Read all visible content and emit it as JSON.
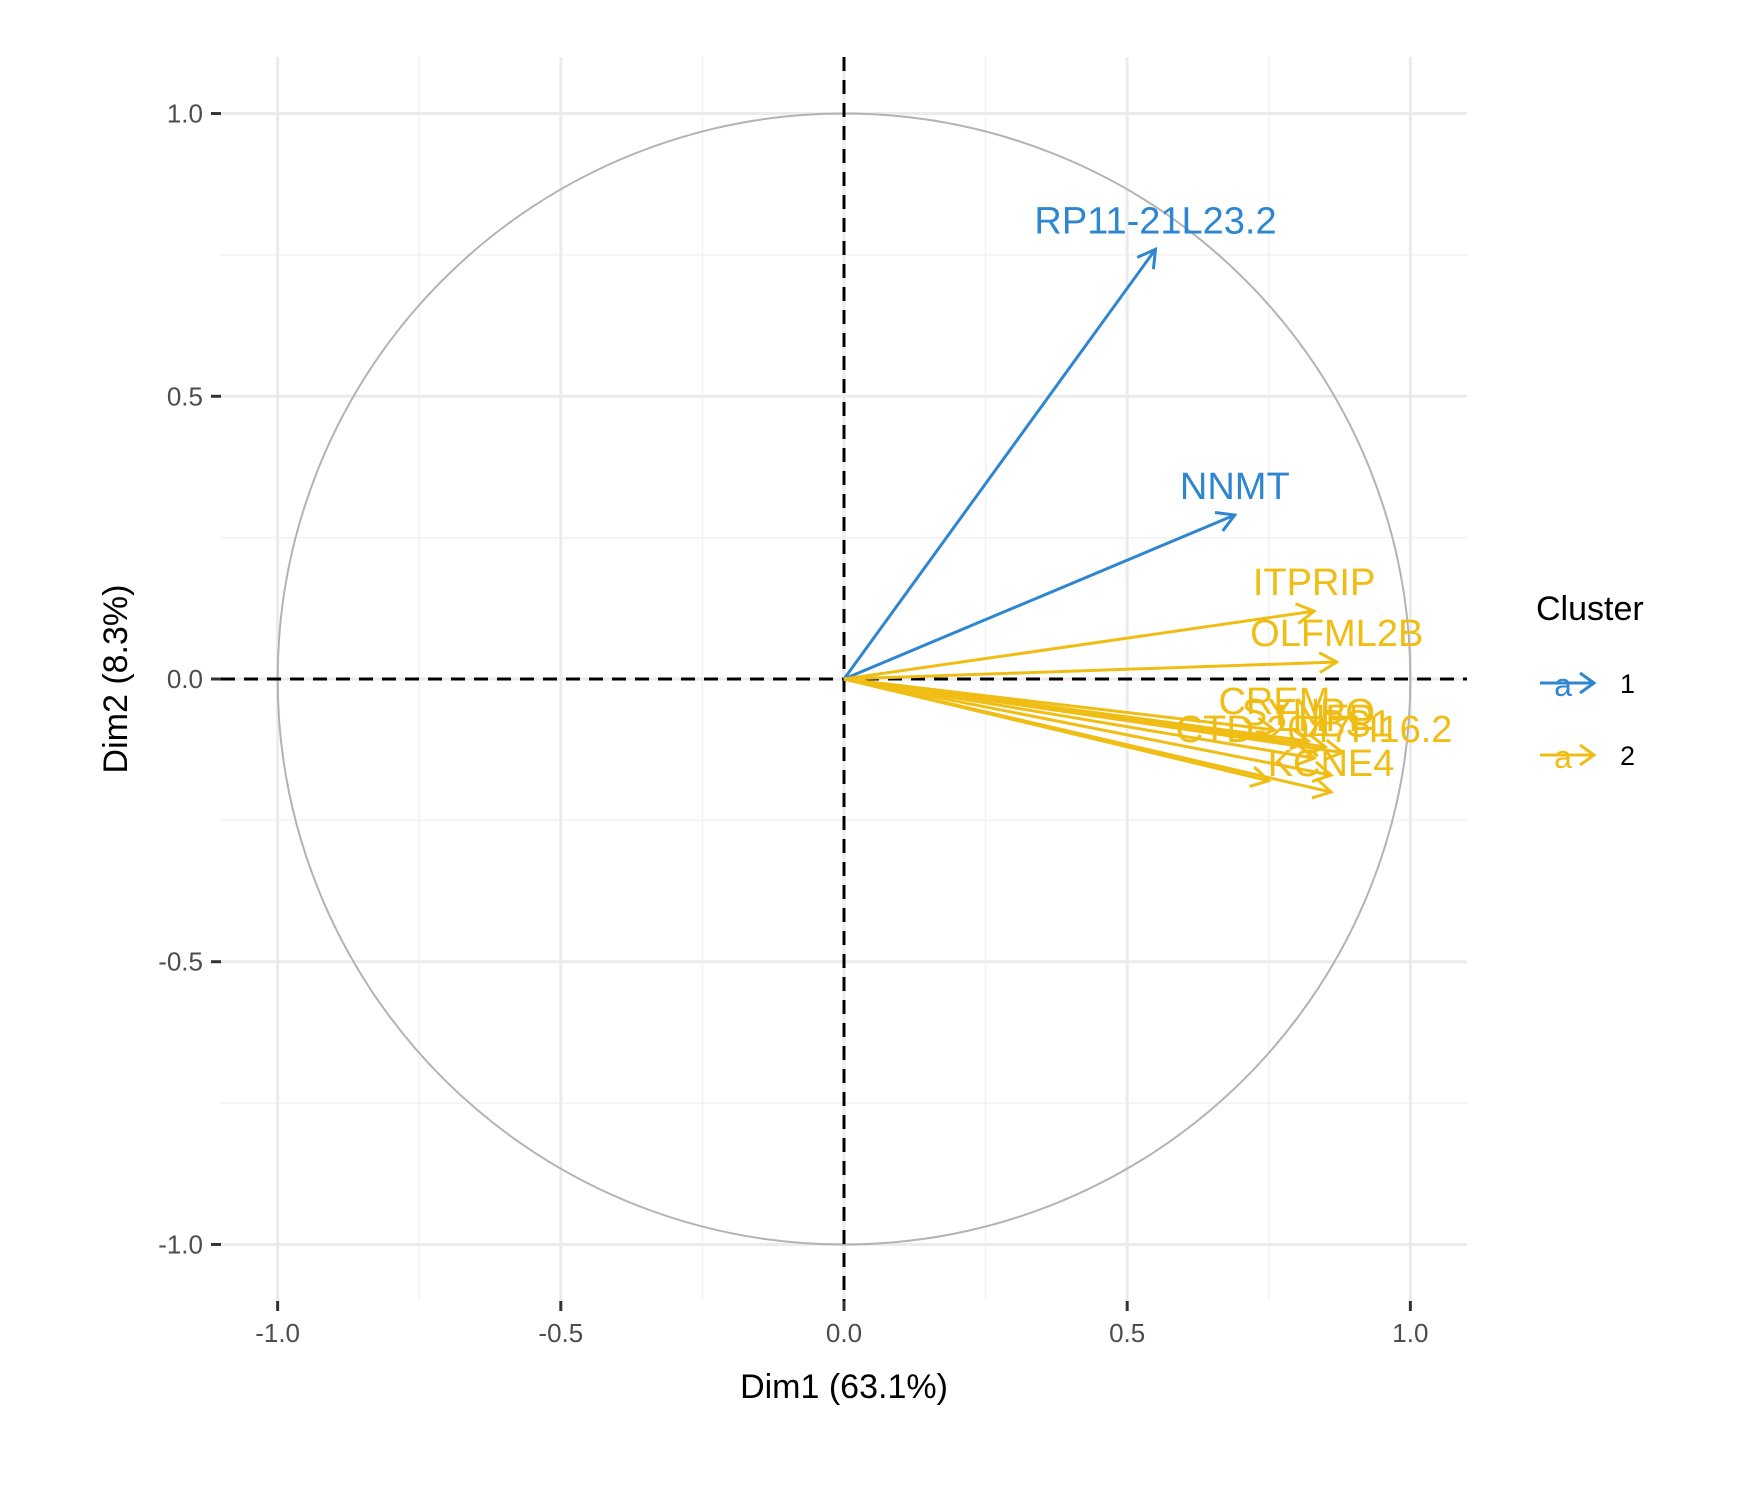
{
  "chart_data": {
    "type": "scatter",
    "subtype": "pca-variable-correlation-circle",
    "title": "",
    "xlabel": "Dim1 (63.1%)",
    "ylabel": "Dim2 (8.3%)",
    "xlim": [
      -1.1,
      1.1
    ],
    "ylim": [
      -1.1,
      1.1
    ],
    "x_ticks": [
      -1.0,
      -0.5,
      0.0,
      0.5,
      1.0
    ],
    "x_tick_labels": [
      "-1.0",
      "-0.5",
      "0.0",
      "0.5",
      "1.0"
    ],
    "y_ticks": [
      -1.0,
      -0.5,
      0.0,
      0.5,
      1.0
    ],
    "y_tick_labels": [
      "-1.0",
      "-0.5",
      "0.0",
      "0.5",
      "1.0"
    ],
    "grid": true,
    "unit_circle": true,
    "legend": {
      "title": "Cluster",
      "position": "right",
      "key_glyph": "a",
      "entries": [
        {
          "label": "1",
          "color": "#2e86d1"
        },
        {
          "label": "2",
          "color": "#f0bd14"
        }
      ]
    },
    "series": [
      {
        "name": "1",
        "color": "#2e86d1",
        "points": [
          {
            "label": "RP11-21L23.2",
            "x": 0.55,
            "y": 0.76
          },
          {
            "label": "NNMT",
            "x": 0.69,
            "y": 0.29
          }
        ]
      },
      {
        "name": "2",
        "color": "#f0bd14",
        "points": [
          {
            "label": "ITPRIP",
            "x": 0.83,
            "y": 0.12
          },
          {
            "label": "OLFML2B",
            "x": 0.87,
            "y": 0.03
          },
          {
            "label": "CREM",
            "x": 0.76,
            "y": -0.09
          },
          {
            "label": "SYNPO",
            "x": 0.82,
            "y": -0.11
          },
          {
            "label": "LHFP",
            "x": 0.85,
            "y": -0.12
          },
          {
            "label": "UBS1",
            "x": 0.88,
            "y": -0.13
          },
          {
            "label": "CTD-2047H16.2",
            "x": 0.83,
            "y": -0.14
          },
          {
            "label": "KCNE4",
            "x": 0.86,
            "y": -0.2
          },
          {
            "label": "",
            "x": 0.75,
            "y": -0.18
          },
          {
            "label": "",
            "x": 0.86,
            "y": -0.17
          }
        ]
      }
    ]
  }
}
